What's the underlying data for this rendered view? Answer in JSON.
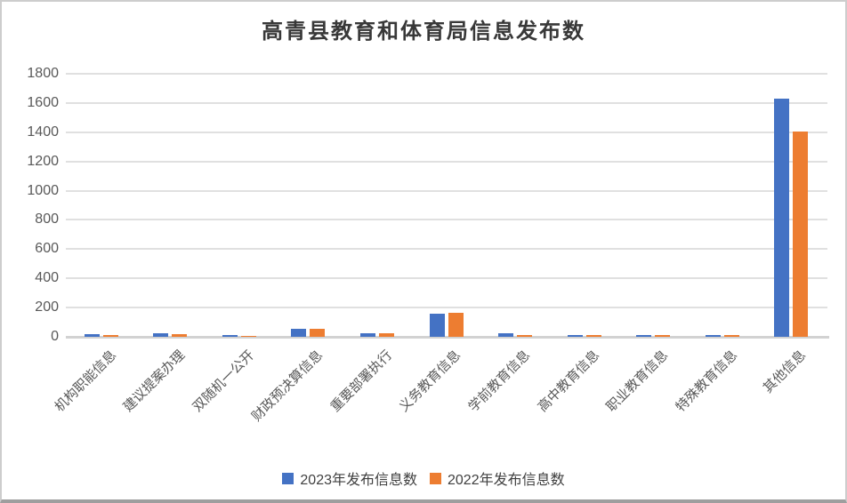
{
  "chart_data": {
    "type": "bar",
    "title": "高青县教育和体育局信息发布数",
    "categories": [
      "机构职能信息",
      "建议提案办理",
      "双随机一公开",
      "财政预决算信息",
      "重要部署执行",
      "义务教育信息",
      "学前教育信息",
      "高中教育信息",
      "职业教育信息",
      "特殊教育信息",
      "其他信息"
    ],
    "series": [
      {
        "name": "2023年发布信息数",
        "color": "#4472C4",
        "values": [
          20,
          22,
          12,
          55,
          25,
          160,
          22,
          14,
          14,
          14,
          1630
        ]
      },
      {
        "name": "2022年发布信息数",
        "color": "#ED7D31",
        "values": [
          10,
          18,
          8,
          52,
          22,
          165,
          12,
          12,
          10,
          12,
          1405
        ]
      }
    ],
    "xlabel": "",
    "ylabel": "",
    "ylim": [
      0,
      1800
    ],
    "yticks": [
      0,
      200,
      400,
      600,
      800,
      1000,
      1200,
      1400,
      1600,
      1800
    ],
    "grid": true,
    "legend_position": "bottom",
    "x_label_rotation": -45
  },
  "colors": {
    "gridline": "#e0e0e0",
    "axis_line": "#d2d2d2",
    "tick_label": "#595959",
    "title_text": "#383838",
    "legend_text": "#404040",
    "background": "#ffffff"
  }
}
